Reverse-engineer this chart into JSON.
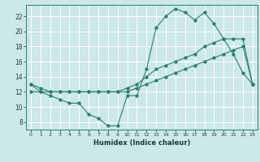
{
  "xlabel": "Humidex (Indice chaleur)",
  "x_ticks": [
    0,
    1,
    2,
    3,
    4,
    5,
    6,
    7,
    8,
    9,
    10,
    11,
    12,
    13,
    14,
    15,
    16,
    17,
    18,
    19,
    20,
    21,
    22,
    23
  ],
  "xlim": [
    -0.5,
    23.5
  ],
  "ylim": [
    7,
    23.5
  ],
  "y_ticks": [
    8,
    10,
    12,
    14,
    16,
    18,
    20,
    22
  ],
  "bg_color": "#cce8e8",
  "line_color": "#2e7d6e",
  "grid_color": "#ffffff",
  "series1_y": [
    13,
    12,
    11.5,
    11,
    10.5,
    10.5,
    9,
    8.5,
    7.5,
    7.5,
    11.5,
    11.5,
    15,
    20.5,
    22,
    23,
    22.5,
    21.5,
    22.5,
    21,
    19,
    17,
    14.5,
    13
  ],
  "series2_y": [
    12,
    12,
    12,
    12,
    12,
    12,
    12,
    12,
    12,
    12,
    12,
    12.5,
    13,
    13.5,
    14,
    14.5,
    15,
    15.5,
    16,
    16.5,
    17,
    17.5,
    18,
    13
  ],
  "series3_y": [
    13,
    12.5,
    12,
    12,
    12,
    12,
    12,
    12,
    12,
    12,
    12.5,
    13,
    14,
    15,
    15.5,
    16,
    16.5,
    17,
    18,
    18.5,
    19,
    19,
    19,
    13
  ]
}
